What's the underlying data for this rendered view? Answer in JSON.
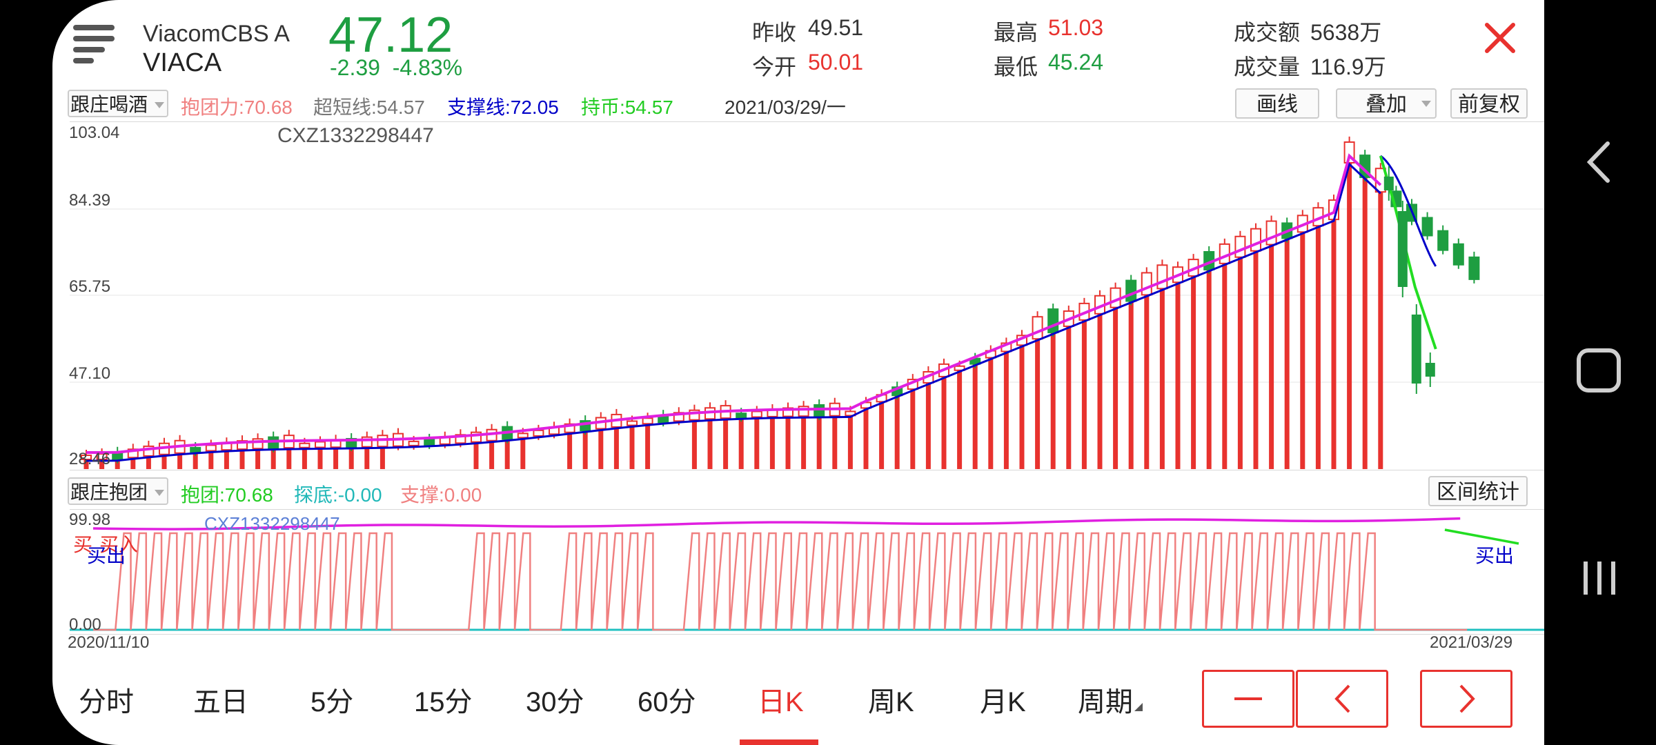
{
  "header": {
    "name": "ViacomCBS A",
    "code": "VIACA",
    "price": "47.12",
    "change": "-2.39",
    "change_pct": "-4.83%",
    "stats": [
      {
        "label": "昨收",
        "value": "49.51",
        "color": "#333333"
      },
      {
        "label": "今开",
        "value": "50.01",
        "color": "#e8322e"
      },
      {
        "label": "最高",
        "value": "51.03",
        "color": "#e8322e"
      },
      {
        "label": "最低",
        "value": "45.24",
        "color": "#1e9e41"
      },
      {
        "label": "成交额",
        "value": "5638万",
        "color": "#333333"
      },
      {
        "label": "成交量",
        "value": "116.9万",
        "color": "#333333"
      }
    ]
  },
  "main_toolbar": {
    "formula": "跟庄喝酒",
    "indicators": [
      {
        "label": "抱团力:",
        "value": "70.68",
        "color": "#f08080"
      },
      {
        "label": "超短线:",
        "value": "54.57",
        "color": "#777777"
      },
      {
        "label": "支撑线:",
        "value": "72.05",
        "color": "#0000c8"
      },
      {
        "label": "持币:",
        "value": "54.57",
        "color": "#22cc22"
      }
    ],
    "date": "2021/03/29/一",
    "buttons": [
      "画线",
      "叠加",
      "前复权"
    ]
  },
  "main_chart": {
    "y_labels": [
      "103.04",
      "84.39",
      "65.75",
      "47.10",
      "28.46"
    ],
    "watermark": "CXZ1332298447"
  },
  "sub_toolbar": {
    "formula": "跟庄抱团",
    "indicators": [
      {
        "label": "抱团:",
        "value": "70.68",
        "color": "#22cc22"
      },
      {
        "label": "探底:",
        "value": "-0.00",
        "color": "#20b8b8"
      },
      {
        "label": "支撑:",
        "value": "0.00",
        "color": "#f08080"
      }
    ],
    "button": "区间统计"
  },
  "sub_chart": {
    "y_labels": [
      "99.98",
      "0.00"
    ],
    "watermark": "CXZ1332298447",
    "annotations": [
      {
        "text": "买",
        "color": "#e8322e"
      },
      {
        "text": "买入",
        "color": "#e8322e"
      },
      {
        "text": "买出",
        "color": "#0000c8"
      },
      {
        "text": "买出",
        "color": "#0000c8"
      }
    ],
    "date_start": "2020/11/10",
    "date_end": "2021/03/29"
  },
  "bottom_tabs": [
    "分时",
    "五日",
    "5分",
    "15分",
    "30分",
    "60分",
    "日K",
    "周K",
    "月K",
    "周期"
  ],
  "active_tab": "日K",
  "colors": {
    "up": "#e8322e",
    "down": "#1e9e41",
    "magenta": "#e020e0",
    "blue": "#0000c8",
    "lime": "#22dd22",
    "pink": "#f08080",
    "cyan": "#20c0c0"
  }
}
